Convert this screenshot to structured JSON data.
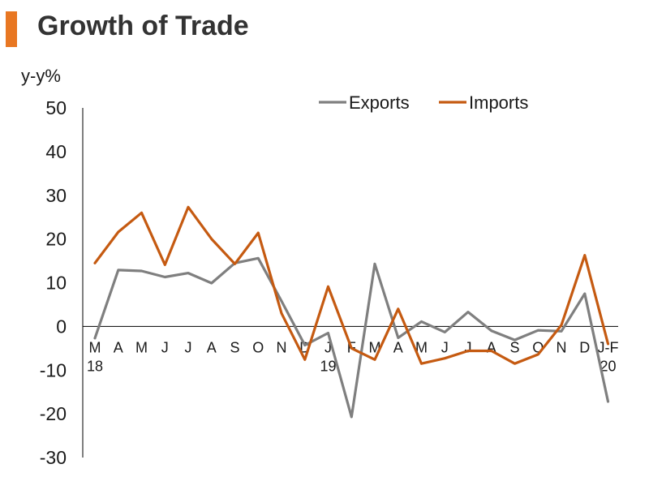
{
  "title": "Growth of Trade",
  "colors": {
    "accent": "#E87722",
    "exports": "#7f7f7f",
    "imports": "#C55A11",
    "axis": "#000000",
    "text": "#333333"
  },
  "chart_data": {
    "type": "line",
    "ylabel": "y-y%",
    "ylim": [
      -30,
      50
    ],
    "yticks": [
      50,
      40,
      30,
      20,
      10,
      0,
      -10,
      -20,
      -30
    ],
    "grid": false,
    "legend_position": "top",
    "categories": [
      "M",
      "A",
      "M",
      "J",
      "J",
      "A",
      "S",
      "O",
      "N",
      "D",
      "J",
      "F",
      "M",
      "A",
      "M",
      "J",
      "J",
      "A",
      "S",
      "O",
      "N",
      "D",
      "J-F"
    ],
    "year_labels": [
      {
        "index": 0,
        "label": "18"
      },
      {
        "index": 10,
        "label": "19"
      },
      {
        "index": 22,
        "label": "20"
      }
    ],
    "series": [
      {
        "name": "Exports",
        "color": "#7f7f7f",
        "values": [
          -2.7,
          12.9,
          12.7,
          11.3,
          12.2,
          9.9,
          14.5,
          15.6,
          5.8,
          -4.3,
          -1.5,
          -20.7,
          14.3,
          -2.6,
          1.1,
          -1.3,
          3.3,
          -1.0,
          -3.1,
          -0.9,
          -1.1,
          7.5,
          -17.2
        ]
      },
      {
        "name": "Imports",
        "color": "#C55A11",
        "values": [
          14.5,
          21.6,
          26.0,
          14.1,
          27.3,
          20.0,
          14.3,
          21.4,
          3.0,
          -7.6,
          9.1,
          -5.0,
          -7.6,
          4.0,
          -8.5,
          -7.3,
          -5.6,
          -5.6,
          -8.5,
          -6.4,
          0.3,
          16.3,
          -4.0
        ]
      }
    ]
  }
}
